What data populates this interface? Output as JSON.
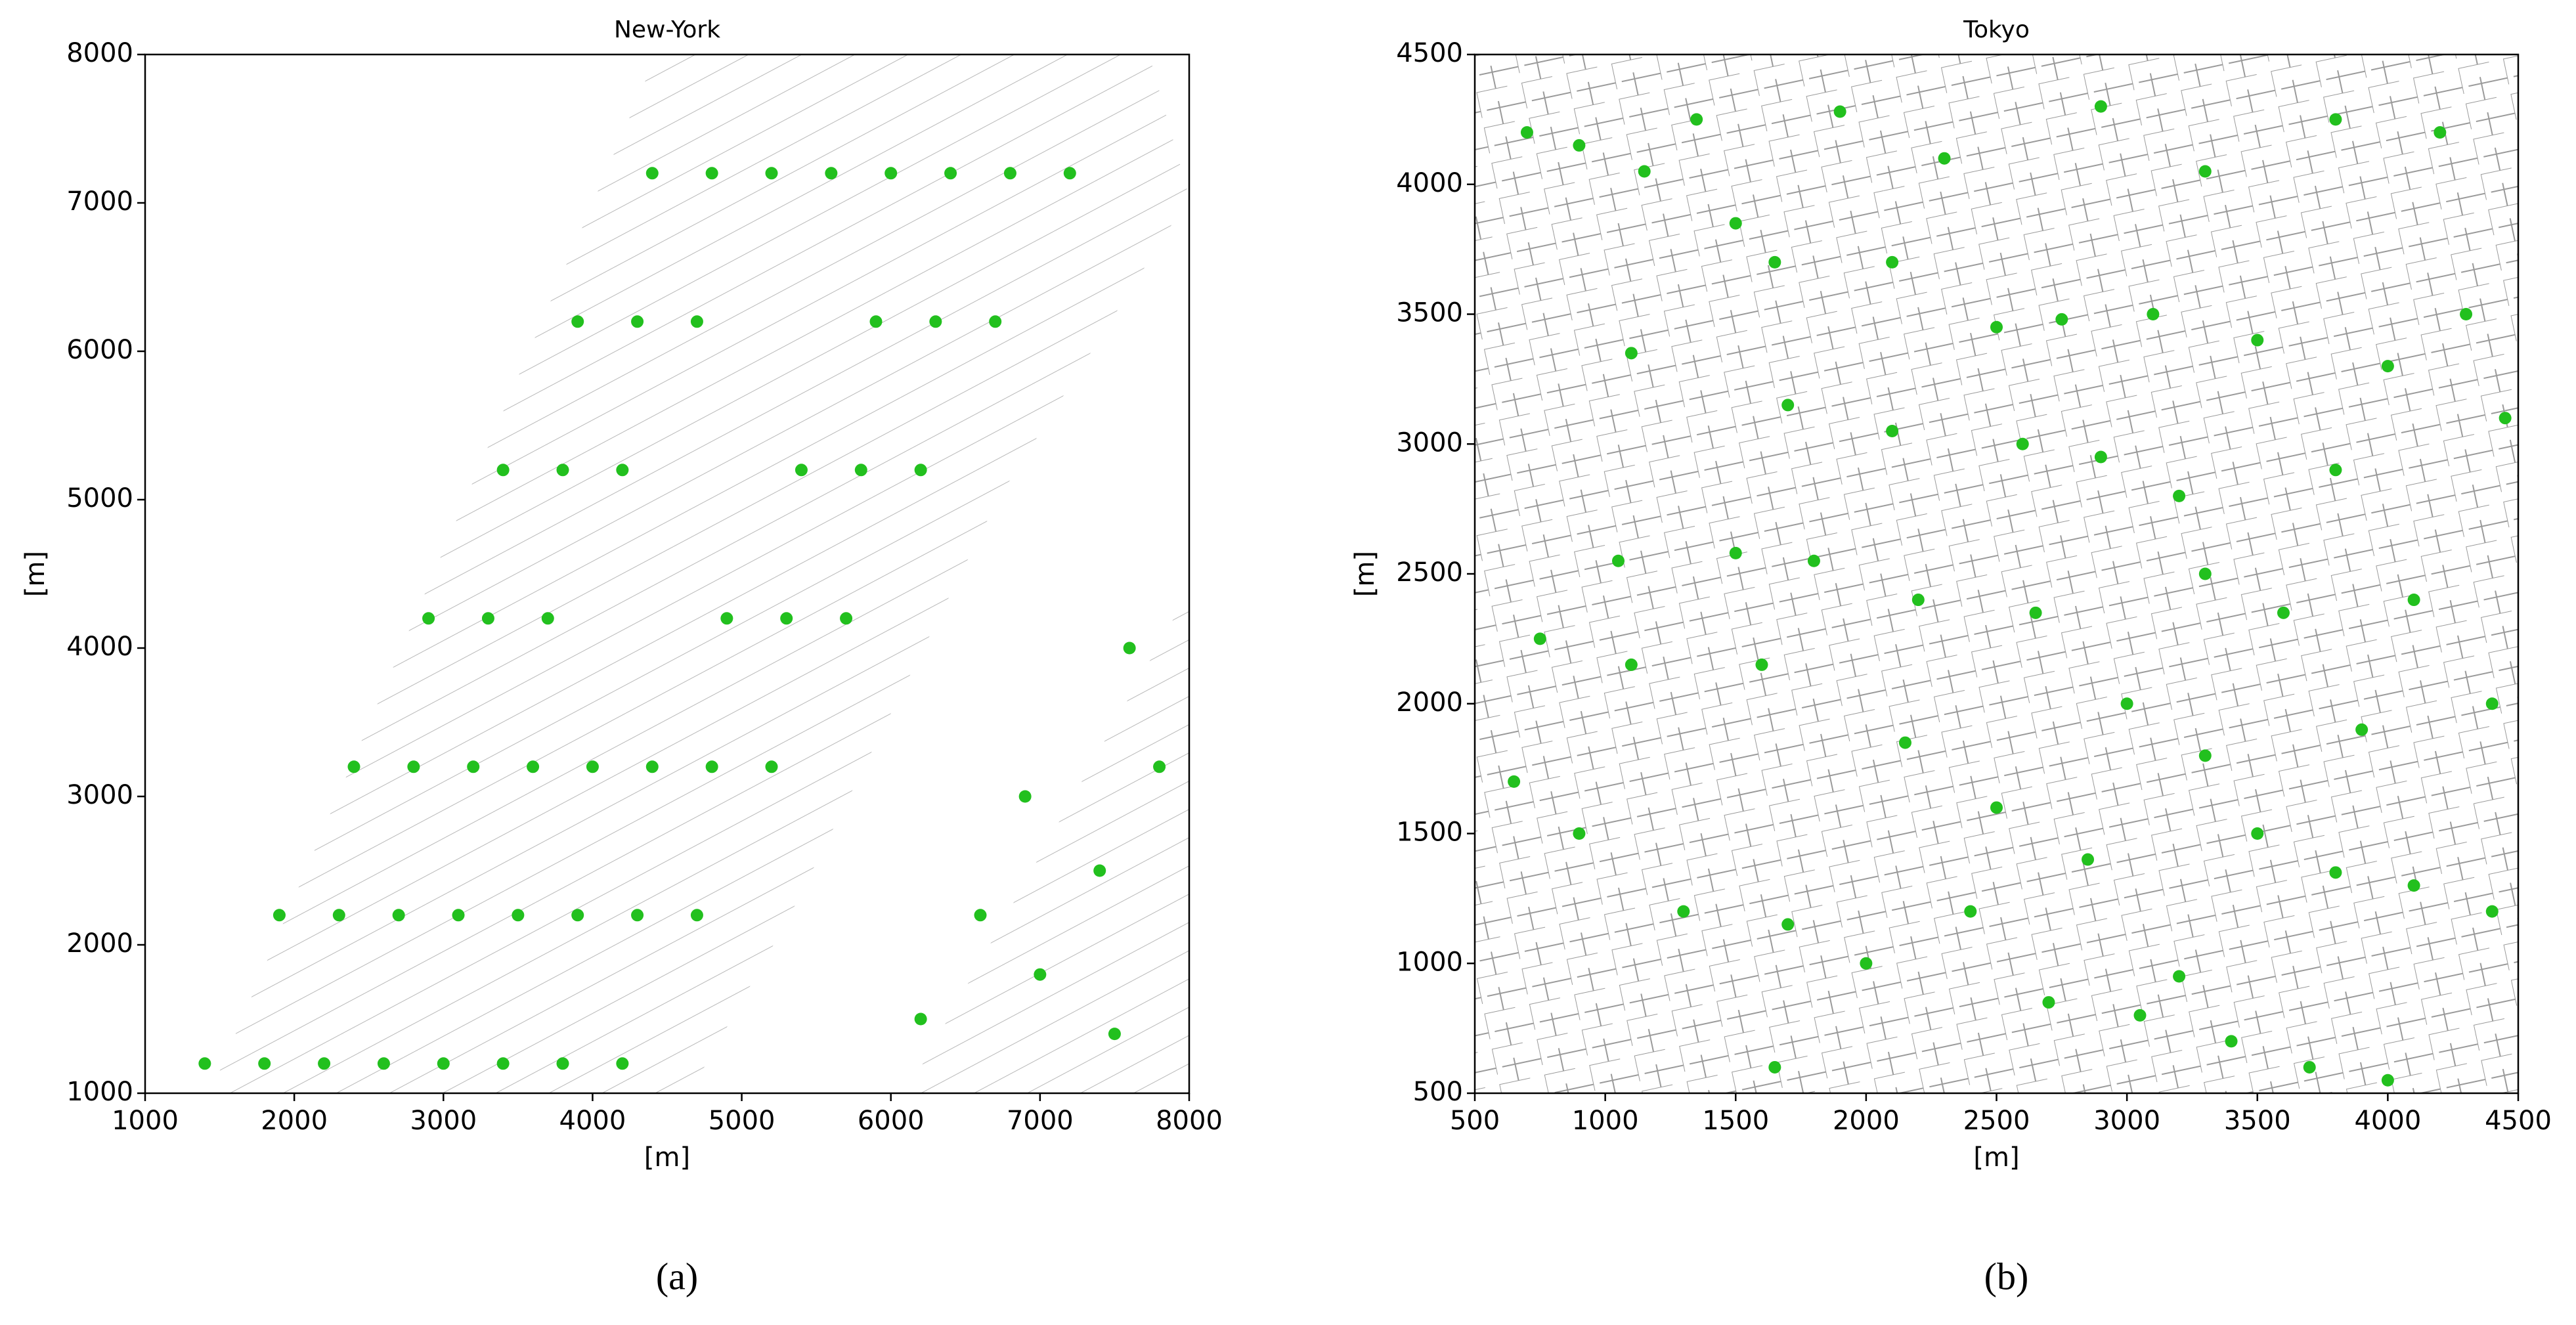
{
  "chart_data": [
    {
      "type": "scatter",
      "title": "New-York",
      "xlabel": "[m]",
      "ylabel": "[m]",
      "caption": "(a)",
      "color": "#22c01e",
      "grid": false,
      "xlim": [
        1000,
        8000
      ],
      "ylim": [
        1000,
        8000
      ],
      "xticks": [
        1000,
        2000,
        3000,
        4000,
        5000,
        6000,
        7000,
        8000
      ],
      "yticks": [
        1000,
        2000,
        3000,
        4000,
        5000,
        6000,
        7000,
        8000
      ],
      "x": [
        1400,
        1900,
        2400,
        2900,
        3400,
        3900,
        4400,
        1800,
        2300,
        2800,
        3300,
        3800,
        4300,
        4800,
        2200,
        2700,
        3200,
        3700,
        4200,
        4700,
        5200,
        2600,
        3100,
        3600,
        5600,
        3000,
        3500,
        4000,
        6000,
        3400,
        3900,
        4400,
        4900,
        5400,
        5900,
        6400,
        3800,
        4300,
        4800,
        5300,
        5800,
        6300,
        6800,
        4200,
        4700,
        5200,
        5700,
        6200,
        6700,
        7200,
        6200,
        6600,
        7000,
        7400,
        7800,
        7500,
        6900,
        7600
      ],
      "y": [
        1200,
        2200,
        3200,
        4200,
        5200,
        6200,
        7200,
        1200,
        2200,
        3200,
        4200,
        5200,
        6200,
        7200,
        1200,
        2200,
        3200,
        4200,
        5200,
        6200,
        7200,
        1200,
        2200,
        3200,
        7200,
        1200,
        2200,
        3200,
        7200,
        1200,
        2200,
        3200,
        4200,
        5200,
        6200,
        7200,
        1200,
        2200,
        3200,
        4200,
        5200,
        6200,
        7200,
        1200,
        2200,
        3200,
        4200,
        5200,
        6200,
        7200,
        1500,
        2200,
        1800,
        2500,
        3200,
        1400,
        3000,
        4000
      ]
    },
    {
      "type": "scatter",
      "title": "Tokyo",
      "xlabel": "[m]",
      "ylabel": "[m]",
      "caption": "(b)",
      "color": "#22c01e",
      "grid": false,
      "xlim": [
        500,
        4500
      ],
      "ylim": [
        500,
        4500
      ],
      "xticks": [
        500,
        1000,
        1500,
        2000,
        2500,
        3000,
        3500,
        4000,
        4500
      ],
      "yticks": [
        500,
        1000,
        1500,
        2000,
        2500,
        3000,
        3500,
        4000,
        4500
      ],
      "x": [
        700,
        900,
        1150,
        1350,
        1500,
        1900,
        2300,
        2900,
        3300,
        3800,
        4200,
        4300,
        1100,
        1650,
        2100,
        2500,
        2750,
        3100,
        3500,
        4000,
        4450,
        1700,
        2100,
        2600,
        2900,
        3200,
        3800,
        1050,
        1500,
        1800,
        2200,
        2650,
        3300,
        3600,
        4100,
        750,
        1100,
        1600,
        2150,
        2500,
        3000,
        3300,
        3900,
        4400,
        650,
        900,
        1300,
        1700,
        2000,
        2400,
        2700,
        3050,
        3500,
        3800,
        4100,
        4400,
        3400,
        3700,
        4000,
        1650,
        3200,
        2850
      ],
      "y": [
        4200,
        4150,
        4050,
        4250,
        3850,
        4280,
        4100,
        4300,
        4050,
        4250,
        4200,
        3500,
        3350,
        3700,
        3700,
        3450,
        3480,
        3500,
        3400,
        3300,
        3100,
        3150,
        3050,
        3000,
        2950,
        2800,
        2900,
        2550,
        2580,
        2550,
        2400,
        2350,
        2500,
        2350,
        2400,
        2250,
        2150,
        2150,
        1850,
        1600,
        2000,
        1800,
        1900,
        2000,
        1700,
        1500,
        1200,
        1150,
        1000,
        1200,
        850,
        800,
        1500,
        1350,
        1300,
        1200,
        700,
        600,
        550,
        600,
        950,
        1400
      ]
    }
  ]
}
